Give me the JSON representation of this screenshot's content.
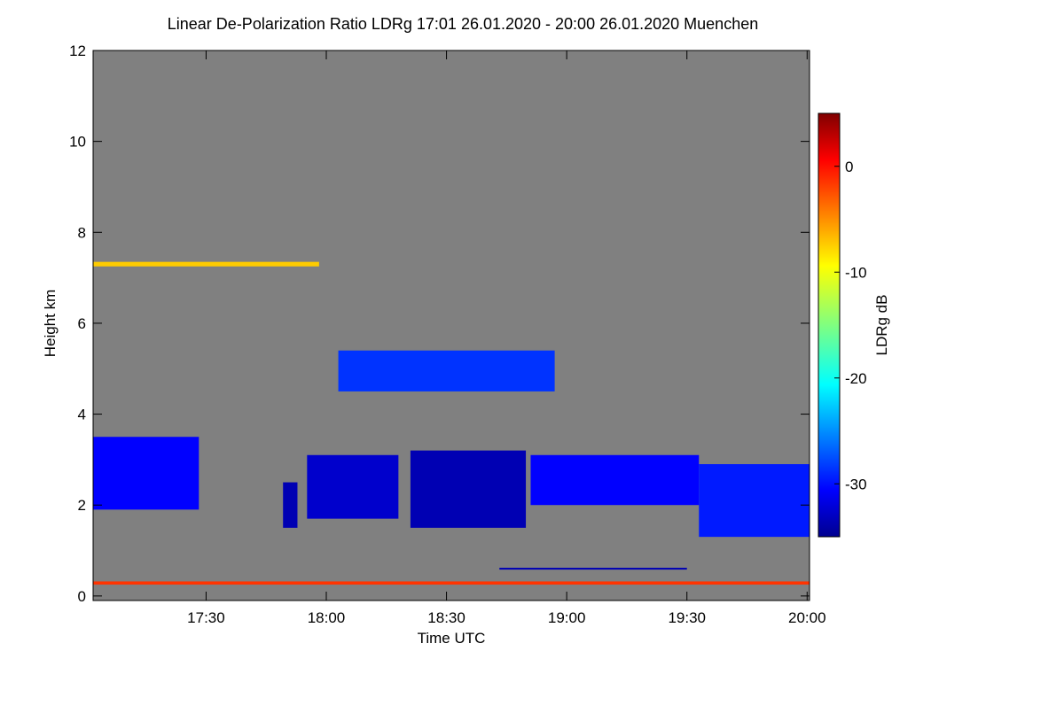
{
  "chart_data": {
    "type": "heatmap",
    "title": "Linear De-Polarization Ratio LDRg   17:01 26.01.2020 - 20:00 26.01.2020 Muenchen",
    "x_label": "Time UTC",
    "y_label": "Height km",
    "colorbar_label": "LDRg dB",
    "background": "#808080",
    "xlim": [
      17.03,
      20.01
    ],
    "xticks": [
      {
        "value": 17.5,
        "label": "17:30"
      },
      {
        "value": 18.0,
        "label": "18:00"
      },
      {
        "value": 18.5,
        "label": "18:30"
      },
      {
        "value": 19.0,
        "label": "19:00"
      },
      {
        "value": 19.5,
        "label": "19:30"
      },
      {
        "value": 20.0,
        "label": "20:00"
      }
    ],
    "ylim": [
      -0.1,
      12
    ],
    "yticks": [
      0,
      2,
      4,
      6,
      8,
      10,
      12
    ],
    "zlim": [
      -35,
      5
    ],
    "zticks": [
      0,
      -10,
      -20,
      -30
    ],
    "cells": [
      {
        "x": [
          17.03,
          17.47
        ],
        "bottom": 1.9,
        "top": 3.5,
        "value": -30
      },
      {
        "x": [
          17.82,
          17.88
        ],
        "bottom": 1.5,
        "top": 2.5,
        "value": -33
      },
      {
        "x": [
          17.92,
          18.3
        ],
        "bottom": 1.7,
        "top": 3.1,
        "value": -32
      },
      {
        "x": [
          18.35,
          18.83
        ],
        "bottom": 1.5,
        "top": 3.2,
        "value": -33
      },
      {
        "x": [
          18.85,
          19.55
        ],
        "bottom": 2.0,
        "top": 3.1,
        "value": -30
      },
      {
        "x": [
          19.55,
          20.01
        ],
        "bottom": 1.3,
        "top": 2.9,
        "value": -29
      },
      {
        "x": [
          18.05,
          18.95
        ],
        "bottom": 4.5,
        "top": 5.4,
        "value": -28
      },
      {
        "x": [
          17.03,
          17.97
        ],
        "bottom": 7.25,
        "top": 7.35,
        "value": -8
      },
      {
        "x": [
          17.03,
          20.01
        ],
        "bottom": 0.25,
        "top": 0.32,
        "value": -2
      },
      {
        "x": [
          18.72,
          19.5
        ],
        "bottom": 0.58,
        "top": 0.62,
        "value": -33
      }
    ]
  }
}
